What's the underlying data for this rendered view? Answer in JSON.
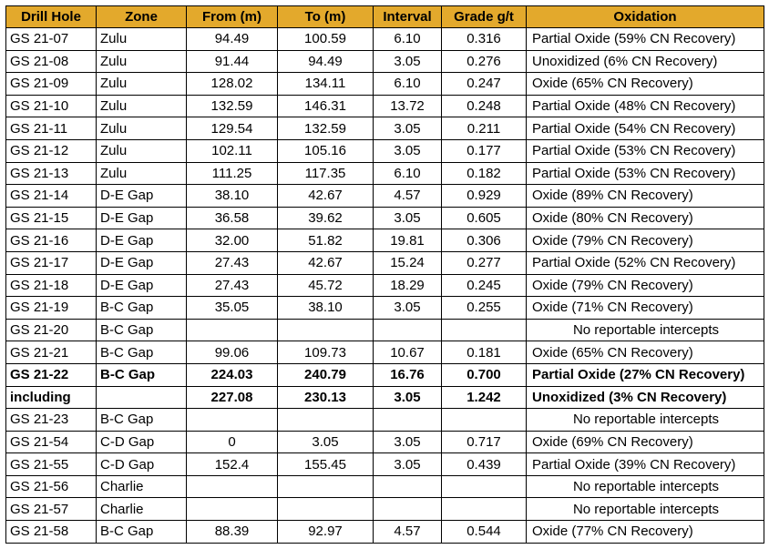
{
  "headers": [
    "Drill Hole",
    "Zone",
    "From (m)",
    "To (m)",
    "Interval",
    "Grade g/t",
    "Oxidation"
  ],
  "rows": [
    [
      "GS 21-07",
      "Zulu",
      "94.49",
      "100.59",
      "6.10",
      "0.316",
      "Partial Oxide (59% CN Recovery)"
    ],
    [
      "GS 21-08",
      "Zulu",
      "91.44",
      "94.49",
      "3.05",
      "0.276",
      "Unoxidized (6%  CN Recovery)"
    ],
    [
      "GS 21-09",
      "Zulu",
      "128.02",
      "134.11",
      "6.10",
      "0.247",
      "Oxide (65% CN Recovery)"
    ],
    [
      "GS 21-10",
      "Zulu",
      "132.59",
      "146.31",
      "13.72",
      "0.248",
      "Partial Oxide (48% CN Recovery)"
    ],
    [
      "GS 21-11",
      "Zulu",
      "129.54",
      "132.59",
      "3.05",
      "0.211",
      "Partial Oxide (54% CN Recovery)"
    ],
    [
      "GS 21-12",
      "Zulu",
      "102.11",
      "105.16",
      "3.05",
      "0.177",
      "Partial Oxide (53% CN Recovery)"
    ],
    [
      "GS 21-13",
      "Zulu",
      "111.25",
      "117.35",
      "6.10",
      "0.182",
      "Partial Oxide (53% CN Recovery)"
    ],
    [
      "GS 21-14",
      "D-E Gap",
      "38.10",
      "42.67",
      "4.57",
      "0.929",
      "Oxide (89% CN Recovery)"
    ],
    [
      "GS 21-15",
      "D-E Gap",
      "36.58",
      "39.62",
      "3.05",
      "0.605",
      "Oxide (80% CN Recovery)"
    ],
    [
      "GS 21-16",
      "D-E Gap",
      "32.00",
      "51.82",
      "19.81",
      "0.306",
      "Oxide (79% CN Recovery)"
    ],
    [
      "GS 21-17",
      "D-E Gap",
      "27.43",
      "42.67",
      "15.24",
      "0.277",
      "Partial Oxide (52% CN Recovery)"
    ],
    [
      "GS 21-18",
      "D-E Gap",
      "27.43",
      "45.72",
      "18.29",
      "0.245",
      "Oxide (79% CN Recovery)"
    ],
    [
      "GS 21-19",
      "B-C Gap",
      "35.05",
      "38.10",
      "3.05",
      "0.255",
      "Oxide (71% CN Recovery)"
    ],
    [
      "GS 21-20",
      "B-C Gap",
      "",
      "",
      "",
      "",
      "No reportable intercepts"
    ],
    [
      "GS 21-21",
      "B-C Gap",
      "99.06",
      "109.73",
      "10.67",
      "0.181",
      "Oxide (65% CN Recovery)"
    ],
    [
      "GS 21-22",
      "B-C Gap",
      "224.03",
      "240.79",
      "16.76",
      "0.700",
      "Partial Oxide (27% CN Recovery)"
    ],
    [
      "including",
      "",
      "227.08",
      "230.13",
      "3.05",
      "1.242",
      "Unoxidized (3% CN Recovery)"
    ],
    [
      "GS 21-23",
      "B-C Gap",
      "",
      "",
      "",
      "",
      "No reportable intercepts"
    ],
    [
      "GS 21-54",
      "C-D Gap",
      "0",
      "3.05",
      "3.05",
      "0.717",
      "Oxide (69% CN Recovery)"
    ],
    [
      "GS 21-55",
      "C-D Gap",
      "152.4",
      "155.45",
      "3.05",
      "0.439",
      "Partial Oxide (39% CN Recovery)"
    ],
    [
      "GS 21-56",
      "Charlie",
      "",
      "",
      "",
      "",
      "No reportable intercepts"
    ],
    [
      "GS 21-57",
      "Charlie",
      "",
      "",
      "",
      "",
      "No reportable intercepts"
    ],
    [
      "GS 21-58",
      "B-C Gap",
      "88.39",
      "92.97",
      "4.57",
      "0.544",
      "Oxide (77% CN Recovery)"
    ]
  ],
  "bold_rows": [
    15,
    16
  ],
  "colors": {
    "header_bg": "#e3a92c",
    "border": "#000000"
  }
}
